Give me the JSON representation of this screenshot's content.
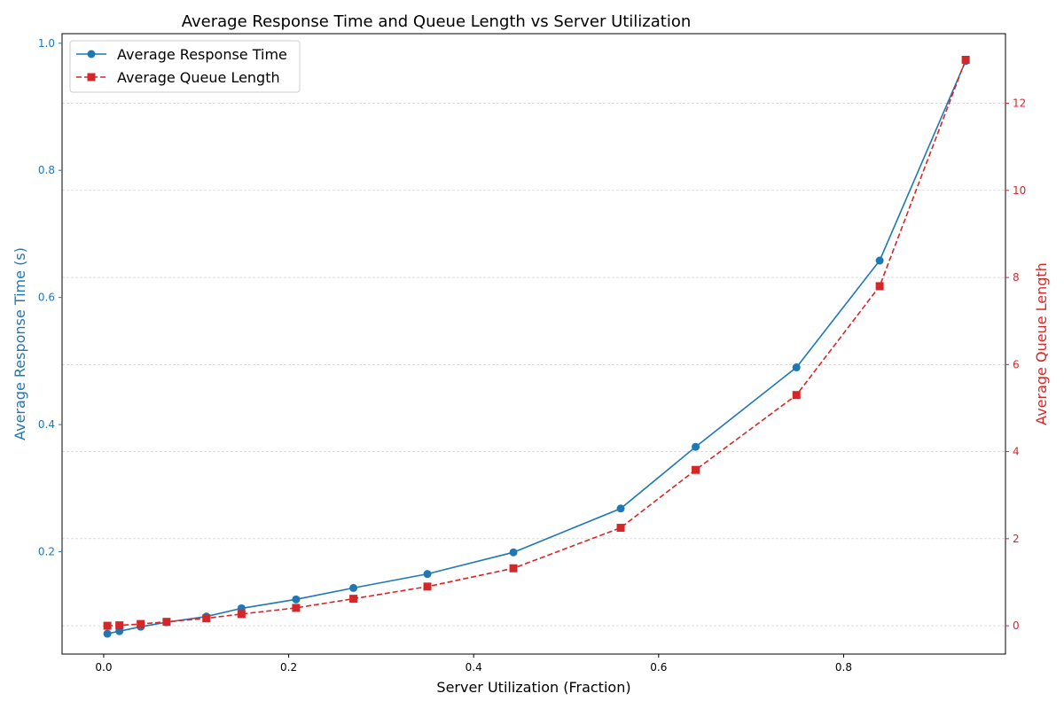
{
  "chart_data": {
    "type": "line",
    "title": "Average Response Time and Queue Length vs Server Utilization",
    "xlabel": "Server Utilization (Fraction)",
    "ylabel_left": "Average Response Time (s)",
    "ylabel_right": "Average Queue Length",
    "xlim": [
      -0.045,
      0.975
    ],
    "ylim_left": [
      0.039,
      1.015
    ],
    "ylim_right": [
      -0.65,
      13.6
    ],
    "x_ticks": [
      "0.0",
      "0.2",
      "0.4",
      "0.6",
      "0.8"
    ],
    "y_left_ticks": [
      "0.2",
      "0.4",
      "0.6",
      "0.8",
      "1.0"
    ],
    "y_right_ticks": [
      "0",
      "2",
      "4",
      "6",
      "8",
      "10",
      "12"
    ],
    "grid": true,
    "legend_position": "top-left",
    "colors": {
      "left_series": "#1f77b4",
      "right_series": "#d62728"
    },
    "series": [
      {
        "name": "Average Response Time",
        "axis": "left",
        "style": "solid",
        "marker": "circle",
        "x": [
          0.004,
          0.017,
          0.04,
          0.068,
          0.111,
          0.149,
          0.208,
          0.27,
          0.35,
          0.443,
          0.559,
          0.64,
          0.749,
          0.839,
          0.932
        ],
        "values": [
          0.071,
          0.075,
          0.082,
          0.089,
          0.098,
          0.111,
          0.125,
          0.143,
          0.165,
          0.199,
          0.268,
          0.365,
          0.49,
          0.658,
          0.972
        ]
      },
      {
        "name": "Average Queue Length",
        "axis": "right",
        "style": "dashed",
        "marker": "square",
        "x": [
          0.004,
          0.017,
          0.04,
          0.068,
          0.111,
          0.149,
          0.208,
          0.27,
          0.35,
          0.443,
          0.559,
          0.64,
          0.749,
          0.839,
          0.932
        ],
        "values": [
          0.0,
          0.01,
          0.04,
          0.09,
          0.17,
          0.27,
          0.41,
          0.62,
          0.9,
          1.32,
          2.25,
          3.58,
          5.3,
          7.8,
          13.0
        ]
      }
    ]
  }
}
